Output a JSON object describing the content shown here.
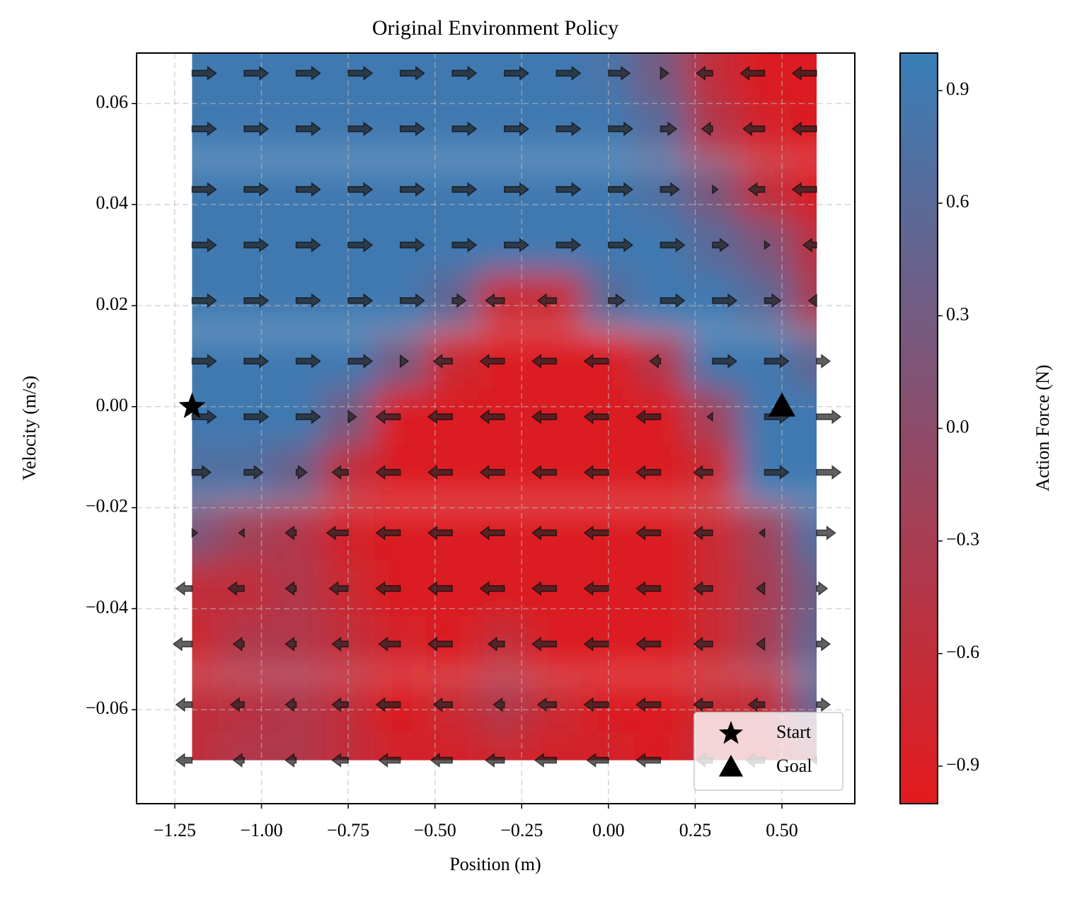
{
  "chart_data": {
    "type": "quiver",
    "title": "Original Environment Policy",
    "xlabel": "Position (m)",
    "ylabel": "Velocity (m/s)",
    "x": [
      -1.2,
      -1.05,
      -0.9,
      -0.75,
      -0.6,
      -0.45,
      -0.3,
      -0.15,
      0,
      0.15,
      0.3,
      0.45,
      0.6
    ],
    "y": [
      0.066,
      0.055,
      0.043,
      0.032,
      0.021,
      0.009,
      -0.002,
      -0.013,
      -0.025,
      -0.036,
      -0.047,
      -0.059,
      -0.07
    ],
    "z": [
      [
        0.9,
        0.9,
        0.9,
        0.9,
        0.9,
        0.9,
        0.9,
        0.9,
        0.8,
        0.3,
        -0.6,
        -0.9,
        -0.9
      ],
      [
        0.9,
        0.9,
        0.9,
        0.9,
        0.9,
        0.9,
        0.9,
        0.9,
        0.9,
        0.6,
        -0.4,
        -0.8,
        -0.9
      ],
      [
        0.9,
        0.9,
        0.9,
        0.9,
        0.9,
        0.9,
        0.9,
        0.9,
        0.9,
        0.7,
        0.2,
        -0.6,
        -0.9
      ],
      [
        0.9,
        0.9,
        0.9,
        0.9,
        0.9,
        0.9,
        0.9,
        0.9,
        0.9,
        0.9,
        0.6,
        0.2,
        -0.5
      ],
      [
        0.9,
        0.9,
        0.9,
        0.9,
        0.9,
        0.5,
        -0.7,
        -0.7,
        0.6,
        0.9,
        0.9,
        0.6,
        -0.3
      ],
      [
        0.9,
        0.9,
        0.9,
        0.9,
        0.3,
        -0.7,
        -0.9,
        -0.9,
        -0.9,
        -0.4,
        0.9,
        0.9,
        0.5
      ],
      [
        0.9,
        0.9,
        0.9,
        0.3,
        -0.9,
        -0.9,
        -0.9,
        -0.9,
        -0.9,
        -0.9,
        -0.2,
        0.9,
        0.9
      ],
      [
        0.7,
        0.7,
        0.4,
        -0.6,
        -0.9,
        -0.9,
        -0.9,
        -0.9,
        -0.9,
        -0.9,
        -0.7,
        0.9,
        0.9
      ],
      [
        0.2,
        -0.2,
        -0.4,
        -0.8,
        -0.9,
        -0.9,
        -0.9,
        -0.9,
        -0.9,
        -0.9,
        -0.7,
        -0.2,
        0.7
      ],
      [
        -0.6,
        -0.6,
        -0.4,
        -0.7,
        -0.9,
        -0.9,
        -0.9,
        -0.9,
        -0.9,
        -0.9,
        -0.7,
        -0.3,
        0.4
      ],
      [
        -0.7,
        -0.4,
        -0.4,
        -0.6,
        -0.8,
        -0.9,
        -0.6,
        -0.9,
        -0.9,
        -0.9,
        -0.7,
        -0.3,
        0.5
      ],
      [
        -0.6,
        -0.5,
        -0.4,
        -0.6,
        -0.9,
        -0.7,
        -0.4,
        -0.7,
        -0.9,
        -0.9,
        -0.7,
        -0.6,
        0.5
      ],
      [
        -0.6,
        -0.4,
        -0.4,
        -0.6,
        -0.8,
        -0.8,
        -0.7,
        -0.8,
        -0.8,
        -0.9,
        -0.6,
        -0.7,
        -0.2
      ]
    ],
    "xlim": [
      -1.36,
      0.71
    ],
    "ylim": [
      -0.0786,
      0.07
    ],
    "xticks": [
      {
        "value": -1.25,
        "label": "−1.25"
      },
      {
        "value": -1.0,
        "label": "−1.00"
      },
      {
        "value": -0.75,
        "label": "−0.75"
      },
      {
        "value": -0.5,
        "label": "−0.50"
      },
      {
        "value": -0.25,
        "label": "−0.25"
      },
      {
        "value": 0,
        "label": "0.00"
      },
      0.25,
      {
        "value": 0.5,
        "label": "0.50"
      }
    ],
    "yticks": [
      {
        "value": -0.06,
        "label": "−0.06"
      },
      {
        "value": -0.04,
        "label": "−0.04"
      },
      {
        "value": -0.02,
        "label": "−0.02"
      },
      {
        "value": 0,
        "label": "0.00"
      },
      0.02,
      0.04,
      0.06
    ],
    "grid": true,
    "colorbar": {
      "label": "Action Force (N)",
      "lim": [
        -1,
        1
      ],
      "colors": [
        "#e41a1c",
        "#377eb8"
      ],
      "ticks": [
        {
          "value": -0.9,
          "label": "−0.9"
        },
        {
          "value": -0.6,
          "label": "−0.6"
        },
        {
          "value": -0.3,
          "label": "−0.3"
        },
        {
          "value": 0,
          "label": "0.0"
        },
        0.3,
        0.6,
        0.9
      ]
    },
    "markers": [
      {
        "name": "Start",
        "x": -1.2,
        "y": 0,
        "marker": "star"
      },
      {
        "name": "Goal",
        "x": 0.5,
        "y": 0,
        "marker": "triangle"
      }
    ],
    "legend": "lower right"
  }
}
